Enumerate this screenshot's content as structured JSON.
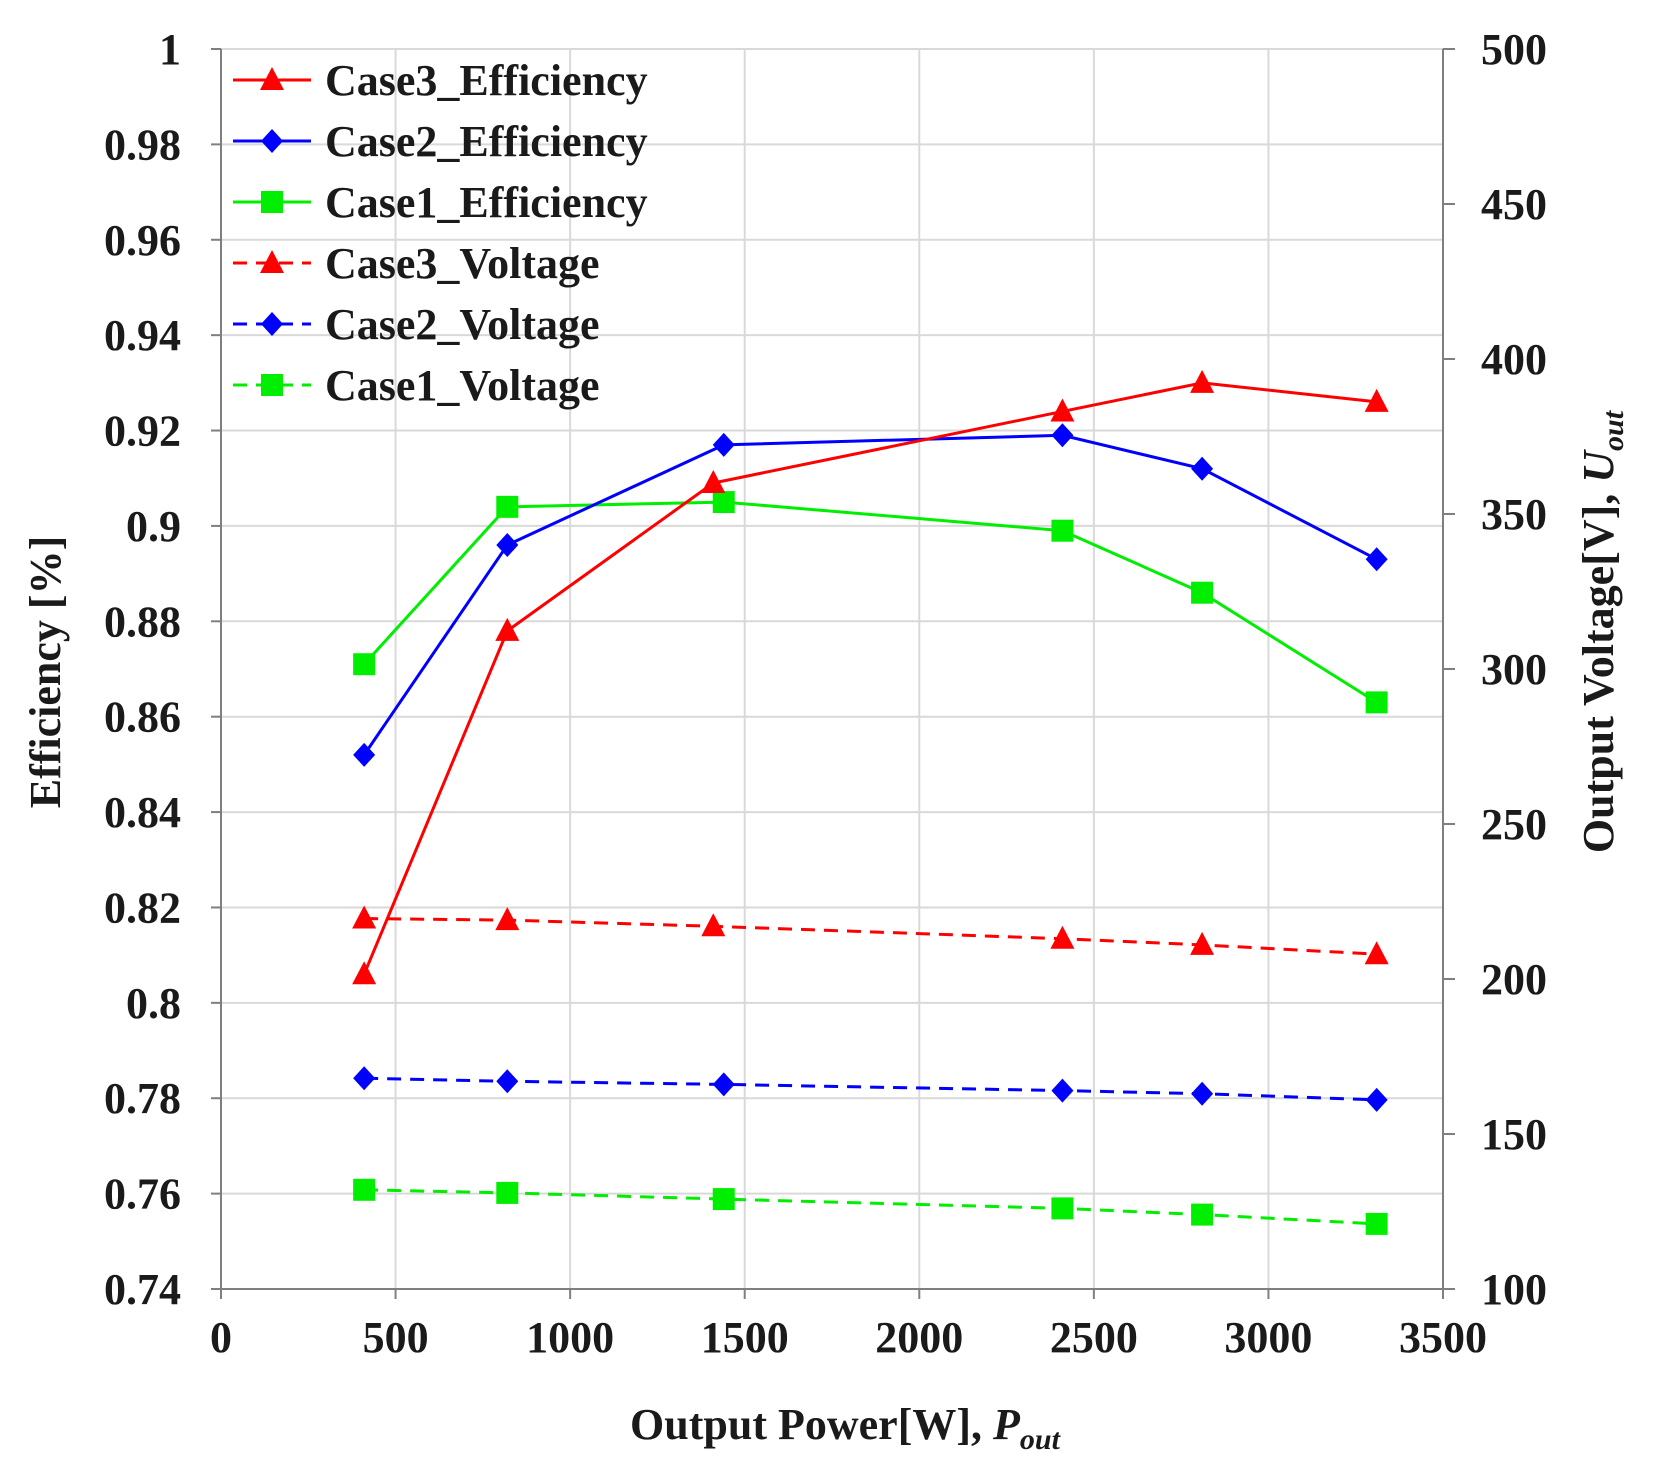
{
  "chart_data": {
    "type": "line",
    "x_axis": {
      "label_main": "Output Power[W], ",
      "label_var": "P",
      "label_sub": "out",
      "range": [
        0,
        3500
      ],
      "ticks": [
        "0",
        "500",
        "1000",
        "1500",
        "2000",
        "2500",
        "3000",
        "3500"
      ]
    },
    "y_axis_left": {
      "label": "Efficiency [%]",
      "range": [
        0.74,
        1
      ],
      "ticks": [
        "0.74",
        "0.76",
        "0.78",
        "0.8",
        "0.82",
        "0.84",
        "0.86",
        "0.88",
        "0.9",
        "0.92",
        "0.94",
        "0.96",
        "0.98",
        "1"
      ]
    },
    "y_axis_right": {
      "label_main": "Output Voltage[V], ",
      "label_var": "U",
      "label_sub": "out",
      "range": [
        100,
        500
      ],
      "ticks": [
        "100",
        "150",
        "200",
        "250",
        "300",
        "350",
        "400",
        "450",
        "500"
      ]
    },
    "grid": true,
    "legend_position": "top-left",
    "series": [
      {
        "name": "Case3_Efficiency",
        "axis": "left",
        "color": "#ff0000",
        "dash": false,
        "marker": "triangle",
        "x": [
          410,
          820,
          1410,
          2410,
          2810,
          3310
        ],
        "values": [
          0.806,
          0.878,
          0.909,
          0.924,
          0.93,
          0.926
        ]
      },
      {
        "name": "Case2_Efficiency",
        "axis": "left",
        "color": "#0000ff",
        "dash": false,
        "marker": "diamond",
        "x": [
          410,
          820,
          1440,
          2410,
          2810,
          3310
        ],
        "values": [
          0.852,
          0.896,
          0.917,
          0.919,
          0.912,
          0.893
        ]
      },
      {
        "name": "Case1_Efficiency",
        "axis": "left",
        "color": "#00ee00",
        "dash": false,
        "marker": "square",
        "x": [
          410,
          820,
          1440,
          2410,
          2810,
          3310
        ],
        "values": [
          0.871,
          0.904,
          0.905,
          0.899,
          0.886,
          0.863
        ]
      },
      {
        "name": "Case3_Voltage",
        "axis": "right",
        "color": "#ff0000",
        "dash": true,
        "marker": "triangle",
        "x": [
          410,
          820,
          1410,
          2410,
          2810,
          3310
        ],
        "values": [
          219.5,
          219,
          217,
          213,
          211,
          208
        ]
      },
      {
        "name": "Case2_Voltage",
        "axis": "right",
        "color": "#0000ff",
        "dash": true,
        "marker": "diamond",
        "x": [
          410,
          820,
          1440,
          2410,
          2810,
          3310
        ],
        "values": [
          168,
          167,
          166,
          164,
          163,
          161
        ]
      },
      {
        "name": "Case1_Voltage",
        "axis": "right",
        "color": "#00ee00",
        "dash": true,
        "marker": "square",
        "x": [
          410,
          820,
          1440,
          2410,
          2810,
          3310
        ],
        "values": [
          132,
          131,
          129,
          126,
          124,
          121
        ]
      }
    ]
  }
}
